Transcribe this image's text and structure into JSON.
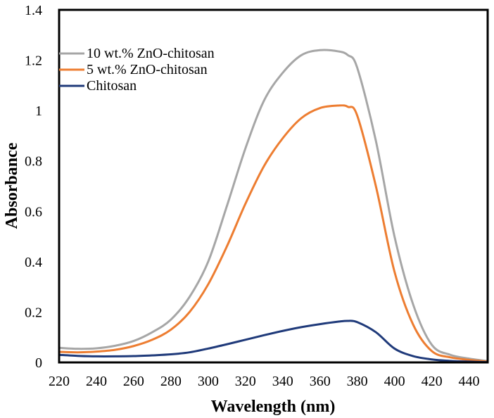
{
  "chart_data": {
    "type": "line",
    "title": "",
    "xlabel": "Wavelength (nm)",
    "ylabel": "Absorbance",
    "xlim": [
      220,
      450
    ],
    "ylim": [
      0,
      1.4
    ],
    "grid": false,
    "legend_position": "top-left",
    "x_ticks": [
      220,
      240,
      260,
      280,
      300,
      320,
      340,
      360,
      380,
      400,
      420,
      440
    ],
    "x_tick_labels": [
      "220",
      "240",
      "260",
      "280",
      "300",
      "320",
      "340",
      "360",
      "380",
      "400",
      "420",
      "440"
    ],
    "y_ticks": [
      0,
      0.2,
      0.4,
      0.6,
      0.8,
      1.0,
      1.2,
      1.4
    ],
    "y_tick_labels": [
      "0",
      "0.2",
      "0.4",
      "0.6",
      "0.8",
      "1",
      "1.2",
      "1.4"
    ],
    "x": [
      220,
      230,
      240,
      250,
      260,
      270,
      280,
      290,
      300,
      310,
      320,
      330,
      340,
      350,
      360,
      370,
      375,
      380,
      390,
      400,
      410,
      420,
      430,
      440,
      450
    ],
    "series": [
      {
        "name": "10 wt.% ZnO-chitosan",
        "color": "#A6A6A6",
        "values": [
          0.058,
          0.054,
          0.056,
          0.066,
          0.085,
          0.12,
          0.17,
          0.26,
          0.4,
          0.62,
          0.85,
          1.04,
          1.15,
          1.22,
          1.24,
          1.235,
          1.22,
          1.17,
          0.88,
          0.5,
          0.23,
          0.07,
          0.03,
          0.015,
          0.005
        ]
      },
      {
        "name": "5 wt.% ZnO-chitosan",
        "color": "#ED7D31",
        "values": [
          0.042,
          0.04,
          0.043,
          0.05,
          0.065,
          0.09,
          0.13,
          0.2,
          0.31,
          0.46,
          0.63,
          0.78,
          0.89,
          0.97,
          1.01,
          1.02,
          1.015,
          0.98,
          0.7,
          0.36,
          0.15,
          0.045,
          0.02,
          0.01,
          0.003
        ]
      },
      {
        "name": "Chitosan",
        "color": "#1F3A7A",
        "values": [
          0.03,
          0.026,
          0.024,
          0.024,
          0.025,
          0.028,
          0.032,
          0.04,
          0.055,
          0.072,
          0.09,
          0.108,
          0.125,
          0.14,
          0.152,
          0.162,
          0.165,
          0.16,
          0.12,
          0.055,
          0.025,
          0.012,
          0.006,
          0.003,
          0.001
        ]
      }
    ]
  }
}
